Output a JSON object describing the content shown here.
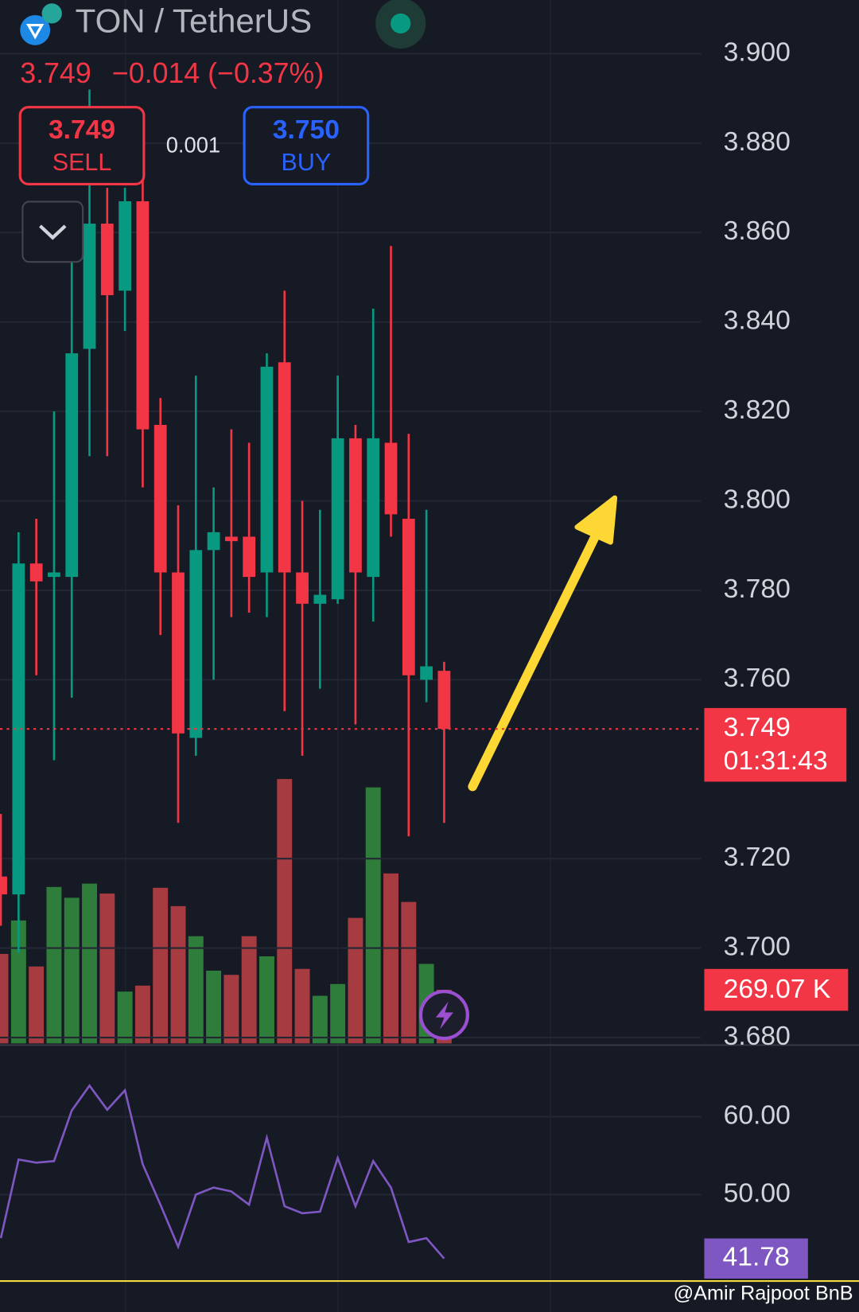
{
  "header": {
    "symbol": "TON / TetherUS",
    "last": "3.749",
    "change": "−0.014 (−0.37%)",
    "sell": {
      "price": "3.749",
      "label": "SELL"
    },
    "spread": "0.001",
    "buy": {
      "price": "3.750",
      "label": "BUY"
    }
  },
  "chart_data": [
    {
      "type": "candlestick",
      "up_color": "#089981",
      "down_color": "#f23645",
      "open": [
        3.716,
        3.712,
        3.786,
        3.783,
        3.783,
        3.834,
        3.862,
        3.847,
        3.867,
        3.817,
        3.784,
        3.747,
        3.789,
        3.792,
        3.792,
        3.784,
        3.831,
        3.784,
        3.777,
        3.778,
        3.814,
        3.783,
        3.813,
        3.796,
        3.76,
        3.762
      ],
      "high": [
        3.73,
        3.793,
        3.796,
        3.82,
        3.856,
        3.892,
        3.87,
        3.87,
        3.873,
        3.823,
        3.799,
        3.828,
        3.803,
        3.816,
        3.813,
        3.833,
        3.847,
        3.8,
        3.798,
        3.828,
        3.817,
        3.843,
        3.857,
        3.815,
        3.798,
        3.764
      ],
      "low": [
        3.705,
        3.699,
        3.761,
        3.742,
        3.756,
        3.81,
        3.81,
        3.838,
        3.803,
        3.77,
        3.728,
        3.743,
        3.76,
        3.774,
        3.775,
        3.774,
        3.753,
        3.743,
        3.758,
        3.777,
        3.75,
        3.773,
        3.792,
        3.725,
        3.755,
        3.728
      ],
      "close": [
        3.712,
        3.786,
        3.782,
        3.784,
        3.833,
        3.862,
        3.846,
        3.867,
        3.816,
        3.784,
        3.748,
        3.789,
        3.793,
        3.791,
        3.783,
        3.83,
        3.784,
        3.777,
        3.779,
        3.814,
        3.784,
        3.814,
        3.797,
        3.761,
        3.763,
        3.749
      ],
      "ylim": [
        3.6785,
        3.912
      ],
      "yticks": [
        {
          "value": 3.9,
          "label": "3.900"
        },
        {
          "value": 3.88,
          "label": "3.880"
        },
        {
          "value": 3.86,
          "label": "3.860"
        },
        {
          "value": 3.84,
          "label": "3.840"
        },
        {
          "value": 3.82,
          "label": "3.820"
        },
        {
          "value": 3.8,
          "label": "3.800"
        },
        {
          "value": 3.78,
          "label": "3.780"
        },
        {
          "value": 3.76,
          "label": "3.760"
        },
        {
          "value": 3.72,
          "label": "3.720"
        },
        {
          "value": 3.7,
          "label": "3.700"
        },
        {
          "value": 3.68,
          "label": "3.680"
        }
      ],
      "last_price": {
        "value": 3.749,
        "label": "3.749"
      },
      "countdown": "01:31:43",
      "grid": true
    },
    {
      "type": "bar",
      "name": "volume",
      "up_color": "#2f7d3a",
      "down_color": "#a63c42",
      "values": [
        449,
        617,
        386,
        785,
        731,
        802,
        752,
        260,
        290,
        781,
        689,
        538,
        365,
        344,
        538,
        437,
        1327,
        374,
        239,
        298,
        630,
        1285,
        853,
        710,
        399,
        269.07
      ],
      "ylim": [
        0,
        5237
      ],
      "last_label": "269.07 K"
    },
    {
      "type": "line",
      "name": "rsi",
      "color": "#7e57c2",
      "values": [
        44.4,
        54.5,
        54.1,
        54.3,
        60.8,
        64.0,
        60.9,
        63.4,
        53.9,
        48.7,
        43.3,
        50.0,
        50.9,
        50.4,
        48.7,
        57.3,
        48.5,
        47.6,
        47.8,
        54.7,
        48.5,
        54.3,
        50.9,
        43.9,
        44.4,
        41.78
      ],
      "ylim": [
        39.0,
        69.1
      ],
      "yticks": [
        {
          "value": 60,
          "label": "60.00"
        },
        {
          "value": 50,
          "label": "50.00"
        }
      ],
      "last_label": "41.78",
      "grid": true
    }
  ],
  "watermark": "@Amir Rajpoot BnB"
}
